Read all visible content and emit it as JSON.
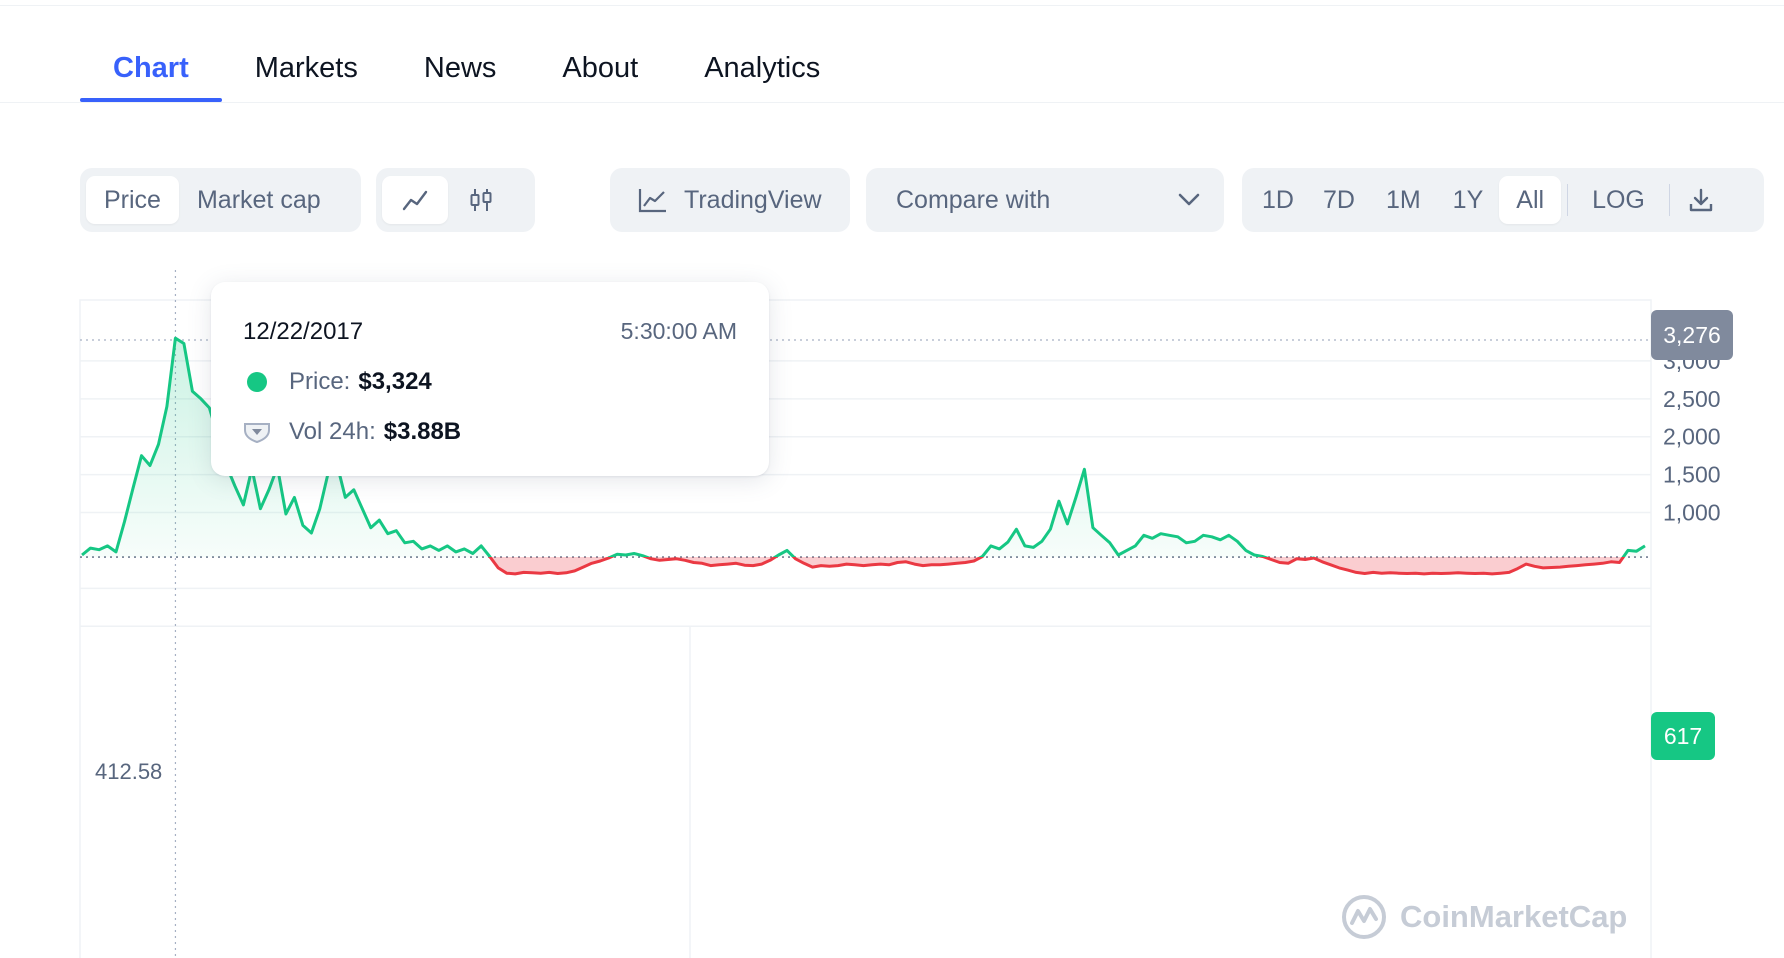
{
  "tabs": [
    {
      "label": "Chart",
      "active": true
    },
    {
      "label": "Markets",
      "active": false
    },
    {
      "label": "News",
      "active": false
    },
    {
      "label": "About",
      "active": false
    },
    {
      "label": "Analytics",
      "active": false
    }
  ],
  "toolbar": {
    "metric": {
      "price": "Price",
      "market_cap": "Market cap",
      "selected": "Price"
    },
    "chart_style": {
      "selected": "line",
      "icons": [
        "line-chart-icon",
        "candlestick-icon"
      ]
    },
    "tradingview_label": "TradingView",
    "compare_placeholder": "Compare with",
    "ranges": [
      "1D",
      "7D",
      "1M",
      "1Y",
      "All"
    ],
    "selected_range": "All",
    "log_label": "LOG",
    "download_icon": "download-icon"
  },
  "tooltip": {
    "date": "12/22/2017",
    "time": "5:30:00 AM",
    "price_label": "Price:",
    "price_value": "$3,324",
    "volume_label": "Vol 24h:",
    "volume_value": "$3.88B"
  },
  "price_badges": {
    "high": "3,276",
    "current": "617"
  },
  "start_price_label": "412.58",
  "watermark": "CoinMarketCap",
  "colors": {
    "accent": "#3861fb",
    "up": "#16c784",
    "down": "#ea3943",
    "neutral": "#808a9d"
  },
  "chart_data": {
    "type": "area",
    "y_ticks": [
      "3,000",
      "2,500",
      "2,000",
      "1,500",
      "1,000"
    ],
    "ylim": [
      0,
      3276
    ],
    "baseline": 412.58,
    "hover_value": 3324,
    "grid": true,
    "series": [
      {
        "values": [
          440,
          530,
          510,
          560,
          480,
          880,
          1320,
          1750,
          1620,
          1900,
          2400,
          3300,
          3230,
          2600,
          2500,
          2380,
          2000,
          1620,
          1350,
          1100,
          1580,
          1050,
          1300,
          1600,
          980,
          1200,
          830,
          730,
          1050,
          1530,
          1650,
          1200,
          1300,
          1050,
          800,
          900,
          720,
          760,
          600,
          620,
          520,
          560,
          500,
          560,
          480,
          520,
          460,
          560,
          420,
          270,
          200,
          190,
          210,
          205,
          200,
          210,
          195,
          205,
          230,
          280,
          330,
          360,
          400,
          450,
          440,
          460,
          430,
          390,
          370,
          380,
          390,
          370,
          340,
          330,
          300,
          310,
          320,
          330,
          305,
          300,
          320,
          370,
          440,
          500,
          390,
          330,
          280,
          300,
          290,
          300,
          320,
          310,
          300,
          310,
          320,
          310,
          340,
          350,
          320,
          300,
          310,
          310,
          320,
          330,
          340,
          360,
          420,
          560,
          520,
          610,
          780,
          560,
          540,
          620,
          780,
          1150,
          850,
          1200,
          1570,
          800,
          700,
          600,
          440,
          500,
          560,
          700,
          660,
          720,
          700,
          680,
          600,
          620,
          700,
          680,
          640,
          700,
          620,
          500,
          440,
          420,
          380,
          340,
          330,
          390,
          380,
          400,
          350,
          310,
          270,
          240,
          210,
          195,
          210,
          200,
          205,
          200,
          195,
          200,
          190,
          200,
          195,
          200,
          205,
          200,
          195,
          200,
          190,
          200,
          210,
          260,
          320,
          290,
          270,
          275,
          280,
          290,
          300,
          310,
          320,
          330,
          350,
          340,
          500,
          490,
          560
        ]
      }
    ]
  }
}
